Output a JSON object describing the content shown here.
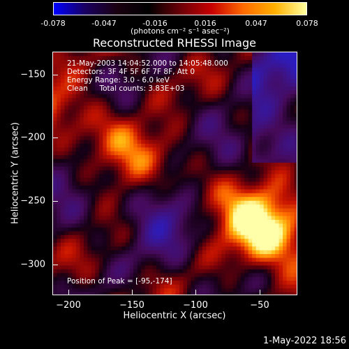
{
  "colorbar": {
    "ticks": [
      "-0.078",
      "-0.047",
      "-0.016",
      "0.016",
      "0.047",
      "0.078"
    ],
    "units": "(photons cm⁻² s⁻¹ asec⁻²)",
    "colormap": [
      "#0000ff",
      "#1a0060",
      "#1a0010",
      "#000000",
      "#6a0008",
      "#c80000",
      "#ff6a00",
      "#ffb000",
      "#ffffa0"
    ]
  },
  "plot": {
    "title": "Reconstructed RHESSI Image",
    "xlabel": "Heliocentric X (arcsec)",
    "ylabel": "Heliocentric Y (arcsec)",
    "x_ticks": [
      "−200",
      "−150",
      "−100",
      "−50"
    ],
    "y_ticks": [
      "−150",
      "−200",
      "−250",
      "−300"
    ],
    "xlim": [
      -212,
      -22
    ],
    "ylim": [
      -324,
      -134
    ],
    "annotations": {
      "line1": "21-May-2003 14:04:52.000 to 14:05:48.000",
      "line2": "Detectors: 3F 4F 5F 6F 7F 8F, Att 0",
      "line3": "Energy Range: 3.0 - 6.0 keV",
      "line4": "Clean     Total counts: 3.83E+03",
      "peak": "Position of Peak = [-95,-174]"
    }
  },
  "footer": {
    "date": "1-May-2022 18:56"
  }
}
